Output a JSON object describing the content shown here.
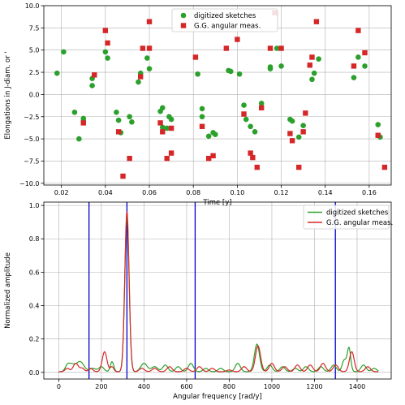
{
  "chart_data": [
    {
      "type": "scatter",
      "xlabel": "Time [y]",
      "ylabel": "Elongations in J-diam. or '",
      "xlim": [
        0.012,
        0.17
      ],
      "ylim": [
        -10.2,
        10.0
      ],
      "xticks": [
        0.02,
        0.04,
        0.06,
        0.08,
        0.1,
        0.12,
        0.14,
        0.16
      ],
      "xtick_labels": [
        "0.02",
        "0.04",
        "0.06",
        "0.08",
        "0.10",
        "0.12",
        "0.14",
        "0.16"
      ],
      "yticks": [
        -10.0,
        -7.5,
        -5.0,
        -2.5,
        0.0,
        2.5,
        5.0,
        7.5,
        10.0
      ],
      "ytick_labels": [
        "−10.0",
        "−7.5",
        "−5.0",
        "−2.5",
        "0.0",
        "2.5",
        "5.0",
        "7.5",
        "10.0"
      ],
      "grid": true,
      "legend": "top-center",
      "series": [
        {
          "name": "digitized sketches",
          "marker": "circle",
          "color": "#2ca02c",
          "points": [
            [
              0.018,
              2.4
            ],
            [
              0.021,
              4.8
            ],
            [
              0.026,
              -2.0
            ],
            [
              0.028,
              -5.0
            ],
            [
              0.03,
              -2.7
            ],
            [
              0.03,
              -3.0
            ],
            [
              0.034,
              1.0
            ],
            [
              0.034,
              1.8
            ],
            [
              0.04,
              4.8
            ],
            [
              0.041,
              4.1
            ],
            [
              0.045,
              -2.0
            ],
            [
              0.046,
              -2.9
            ],
            [
              0.047,
              -4.3
            ],
            [
              0.051,
              -2.5
            ],
            [
              0.052,
              -3.1
            ],
            [
              0.055,
              1.4
            ],
            [
              0.056,
              2.4
            ],
            [
              0.059,
              4.1
            ],
            [
              0.06,
              2.9
            ],
            [
              0.065,
              -1.9
            ],
            [
              0.066,
              -1.5
            ],
            [
              0.066,
              -3.7
            ],
            [
              0.068,
              -3.8
            ],
            [
              0.069,
              -2.5
            ],
            [
              0.07,
              -2.8
            ],
            [
              0.082,
              2.3
            ],
            [
              0.084,
              -1.6
            ],
            [
              0.084,
              -2.5
            ],
            [
              0.087,
              -4.7
            ],
            [
              0.089,
              -4.3
            ],
            [
              0.09,
              -4.5
            ],
            [
              0.096,
              2.7
            ],
            [
              0.097,
              2.6
            ],
            [
              0.101,
              2.3
            ],
            [
              0.103,
              -1.2
            ],
            [
              0.104,
              -2.8
            ],
            [
              0.106,
              -3.6
            ],
            [
              0.108,
              -4.2
            ],
            [
              0.111,
              -1.0
            ],
            [
              0.115,
              2.9
            ],
            [
              0.115,
              3.1
            ],
            [
              0.118,
              5.2
            ],
            [
              0.12,
              3.2
            ],
            [
              0.124,
              -2.8
            ],
            [
              0.125,
              -3.0
            ],
            [
              0.128,
              -4.8
            ],
            [
              0.13,
              -3.5
            ],
            [
              0.134,
              1.7
            ],
            [
              0.135,
              2.4
            ],
            [
              0.137,
              4.0
            ],
            [
              0.153,
              1.9
            ],
            [
              0.155,
              4.2
            ],
            [
              0.158,
              3.2
            ],
            [
              0.164,
              -3.4
            ],
            [
              0.165,
              -4.8
            ]
          ]
        },
        {
          "name": "G.G. angular meas.",
          "marker": "square",
          "color": "#d62728",
          "points": [
            [
              0.03,
              -3.2
            ],
            [
              0.035,
              2.2
            ],
            [
              0.04,
              7.2
            ],
            [
              0.041,
              5.8
            ],
            [
              0.046,
              -4.2
            ],
            [
              0.048,
              -9.2
            ],
            [
              0.051,
              -7.2
            ],
            [
              0.056,
              2.0
            ],
            [
              0.057,
              5.2
            ],
            [
              0.06,
              8.2
            ],
            [
              0.06,
              5.2
            ],
            [
              0.065,
              -3.2
            ],
            [
              0.066,
              -4.2
            ],
            [
              0.068,
              -7.2
            ],
            [
              0.07,
              -6.6
            ],
            [
              0.07,
              -3.8
            ],
            [
              0.081,
              4.2
            ],
            [
              0.084,
              -3.6
            ],
            [
              0.087,
              -7.2
            ],
            [
              0.089,
              -6.9
            ],
            [
              0.095,
              5.2
            ],
            [
              0.1,
              6.2
            ],
            [
              0.103,
              -2.2
            ],
            [
              0.106,
              -6.6
            ],
            [
              0.107,
              -7.1
            ],
            [
              0.109,
              -8.2
            ],
            [
              0.111,
              -1.5
            ],
            [
              0.115,
              5.2
            ],
            [
              0.117,
              9.2
            ],
            [
              0.12,
              5.2
            ],
            [
              0.124,
              -4.4
            ],
            [
              0.125,
              -5.2
            ],
            [
              0.128,
              -8.2
            ],
            [
              0.13,
              -4.2
            ],
            [
              0.131,
              -2.1
            ],
            [
              0.133,
              3.3
            ],
            [
              0.134,
              4.2
            ],
            [
              0.136,
              8.2
            ],
            [
              0.153,
              3.2
            ],
            [
              0.155,
              7.2
            ],
            [
              0.158,
              4.7
            ],
            [
              0.164,
              -4.6
            ],
            [
              0.167,
              -8.2
            ]
          ]
        }
      ]
    },
    {
      "type": "line",
      "xlabel": "Angular frequency [rad/y]",
      "ylabel": "Normalized amplitude",
      "xlim": [
        -70,
        1560
      ],
      "ylim": [
        -0.04,
        1.02
      ],
      "xticks": [
        0,
        200,
        400,
        600,
        800,
        1000,
        1200,
        1400
      ],
      "xtick_labels": [
        "0",
        "200",
        "400",
        "600",
        "800",
        "1000",
        "1200",
        "1400"
      ],
      "yticks": [
        0.0,
        0.2,
        0.4,
        0.6,
        0.8,
        1.0
      ],
      "ytick_labels": [
        "0.0",
        "0.2",
        "0.4",
        "0.6",
        "0.8",
        "1.0"
      ],
      "grid": true,
      "legend": "top-right",
      "vertical_lines": {
        "color": "#0000cc",
        "x": [
          142,
          320,
          640,
          1298
        ]
      },
      "series": [
        {
          "name": "digitized sketches",
          "color": "#2ca02c",
          "peaks": [
            [
              40,
              0.03,
              10
            ],
            [
              60,
              0.04,
              15
            ],
            [
              100,
              0.06,
              18
            ],
            [
              160,
              0.02,
              14
            ],
            [
              200,
              0.03,
              12
            ],
            [
              250,
              0.06,
              8
            ],
            [
              320,
              0.935,
              10
            ],
            [
              400,
              0.05,
              15
            ],
            [
              450,
              0.03,
              15
            ],
            [
              500,
              0.04,
              12
            ],
            [
              560,
              0.03,
              12
            ],
            [
              620,
              0.05,
              12
            ],
            [
              690,
              0.02,
              12
            ],
            [
              760,
              0.02,
              12
            ],
            [
              840,
              0.05,
              12
            ],
            [
              930,
              0.165,
              12
            ],
            [
              990,
              0.04,
              12
            ],
            [
              1050,
              0.03,
              12
            ],
            [
              1110,
              0.02,
              12
            ],
            [
              1160,
              0.03,
              12
            ],
            [
              1230,
              0.03,
              12
            ],
            [
              1290,
              0.04,
              12
            ],
            [
              1340,
              0.07,
              10
            ],
            [
              1362,
              0.14,
              8
            ],
            [
              1430,
              0.04,
              12
            ],
            [
              1480,
              0.02,
              12
            ]
          ]
        },
        {
          "name": "G.G. angular meas.",
          "color": "#d62728",
          "peaks": [
            [
              40,
              0.02,
              10
            ],
            [
              80,
              0.05,
              12
            ],
            [
              110,
              0.02,
              10
            ],
            [
              150,
              0.02,
              10
            ],
            [
              215,
              0.12,
              11
            ],
            [
              250,
              0.03,
              8
            ],
            [
              320,
              0.965,
              10
            ],
            [
              390,
              0.02,
              12
            ],
            [
              450,
              0.02,
              12
            ],
            [
              520,
              0.03,
              12
            ],
            [
              600,
              0.02,
              12
            ],
            [
              660,
              0.03,
              12
            ],
            [
              720,
              0.02,
              12
            ],
            [
              800,
              0.01,
              12
            ],
            [
              870,
              0.03,
              12
            ],
            [
              935,
              0.155,
              12
            ],
            [
              1000,
              0.05,
              12
            ],
            [
              1060,
              0.03,
              12
            ],
            [
              1120,
              0.04,
              12
            ],
            [
              1180,
              0.04,
              12
            ],
            [
              1240,
              0.05,
              12
            ],
            [
              1300,
              0.04,
              12
            ],
            [
              1375,
              0.12,
              11
            ],
            [
              1450,
              0.03,
              12
            ]
          ]
        }
      ]
    }
  ]
}
